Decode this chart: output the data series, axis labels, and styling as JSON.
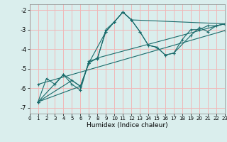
{
  "xlabel": "Humidex (Indice chaleur)",
  "ylabel": "",
  "background_color": "#daeeed",
  "grid_color": "#f0b8b8",
  "line_color": "#1a6b6b",
  "xlim": [
    0,
    23
  ],
  "ylim": [
    -7.3,
    -1.7
  ],
  "yticks": [
    -7,
    -6,
    -5,
    -4,
    -3,
    -2
  ],
  "xticks": [
    0,
    1,
    2,
    3,
    4,
    5,
    6,
    7,
    8,
    9,
    10,
    11,
    12,
    13,
    14,
    15,
    16,
    17,
    18,
    19,
    20,
    21,
    22,
    23
  ],
  "series": [
    {
      "x": [
        1,
        2,
        3,
        4,
        5,
        6,
        7,
        8,
        9,
        10,
        11,
        12,
        13,
        14,
        15,
        16,
        17,
        18,
        19,
        20,
        21,
        22,
        23
      ],
      "y": [
        -6.7,
        -5.5,
        -5.8,
        -5.3,
        -5.8,
        -6.1,
        -4.6,
        -4.5,
        -3.0,
        -2.6,
        -2.1,
        -2.5,
        -3.1,
        -3.8,
        -3.9,
        -4.3,
        -4.2,
        -3.5,
        -3.0,
        -3.0,
        -2.8,
        -2.8,
        -2.7
      ]
    },
    {
      "x": [
        1,
        4,
        6,
        7,
        9,
        10,
        11,
        12,
        13,
        14,
        15,
        16,
        17,
        19,
        20,
        21,
        22,
        23
      ],
      "y": [
        -6.7,
        -5.3,
        -5.9,
        -4.7,
        -3.1,
        -2.6,
        -2.1,
        -2.5,
        -3.1,
        -3.8,
        -3.9,
        -4.3,
        -4.2,
        -3.3,
        -2.9,
        -3.1,
        -2.8,
        -2.7
      ]
    },
    {
      "x": [
        1,
        5,
        6,
        7,
        8,
        23
      ],
      "y": [
        -6.7,
        -5.6,
        -5.9,
        -4.7,
        -4.45,
        -2.7
      ]
    },
    {
      "x": [
        1,
        6,
        7,
        8,
        9,
        10,
        11,
        12,
        23
      ],
      "y": [
        -6.7,
        -5.9,
        -4.7,
        -4.45,
        -3.1,
        -2.6,
        -2.1,
        -2.5,
        -2.7
      ]
    },
    {
      "x": [
        1,
        23
      ],
      "y": [
        -5.8,
        -3.05
      ]
    }
  ]
}
